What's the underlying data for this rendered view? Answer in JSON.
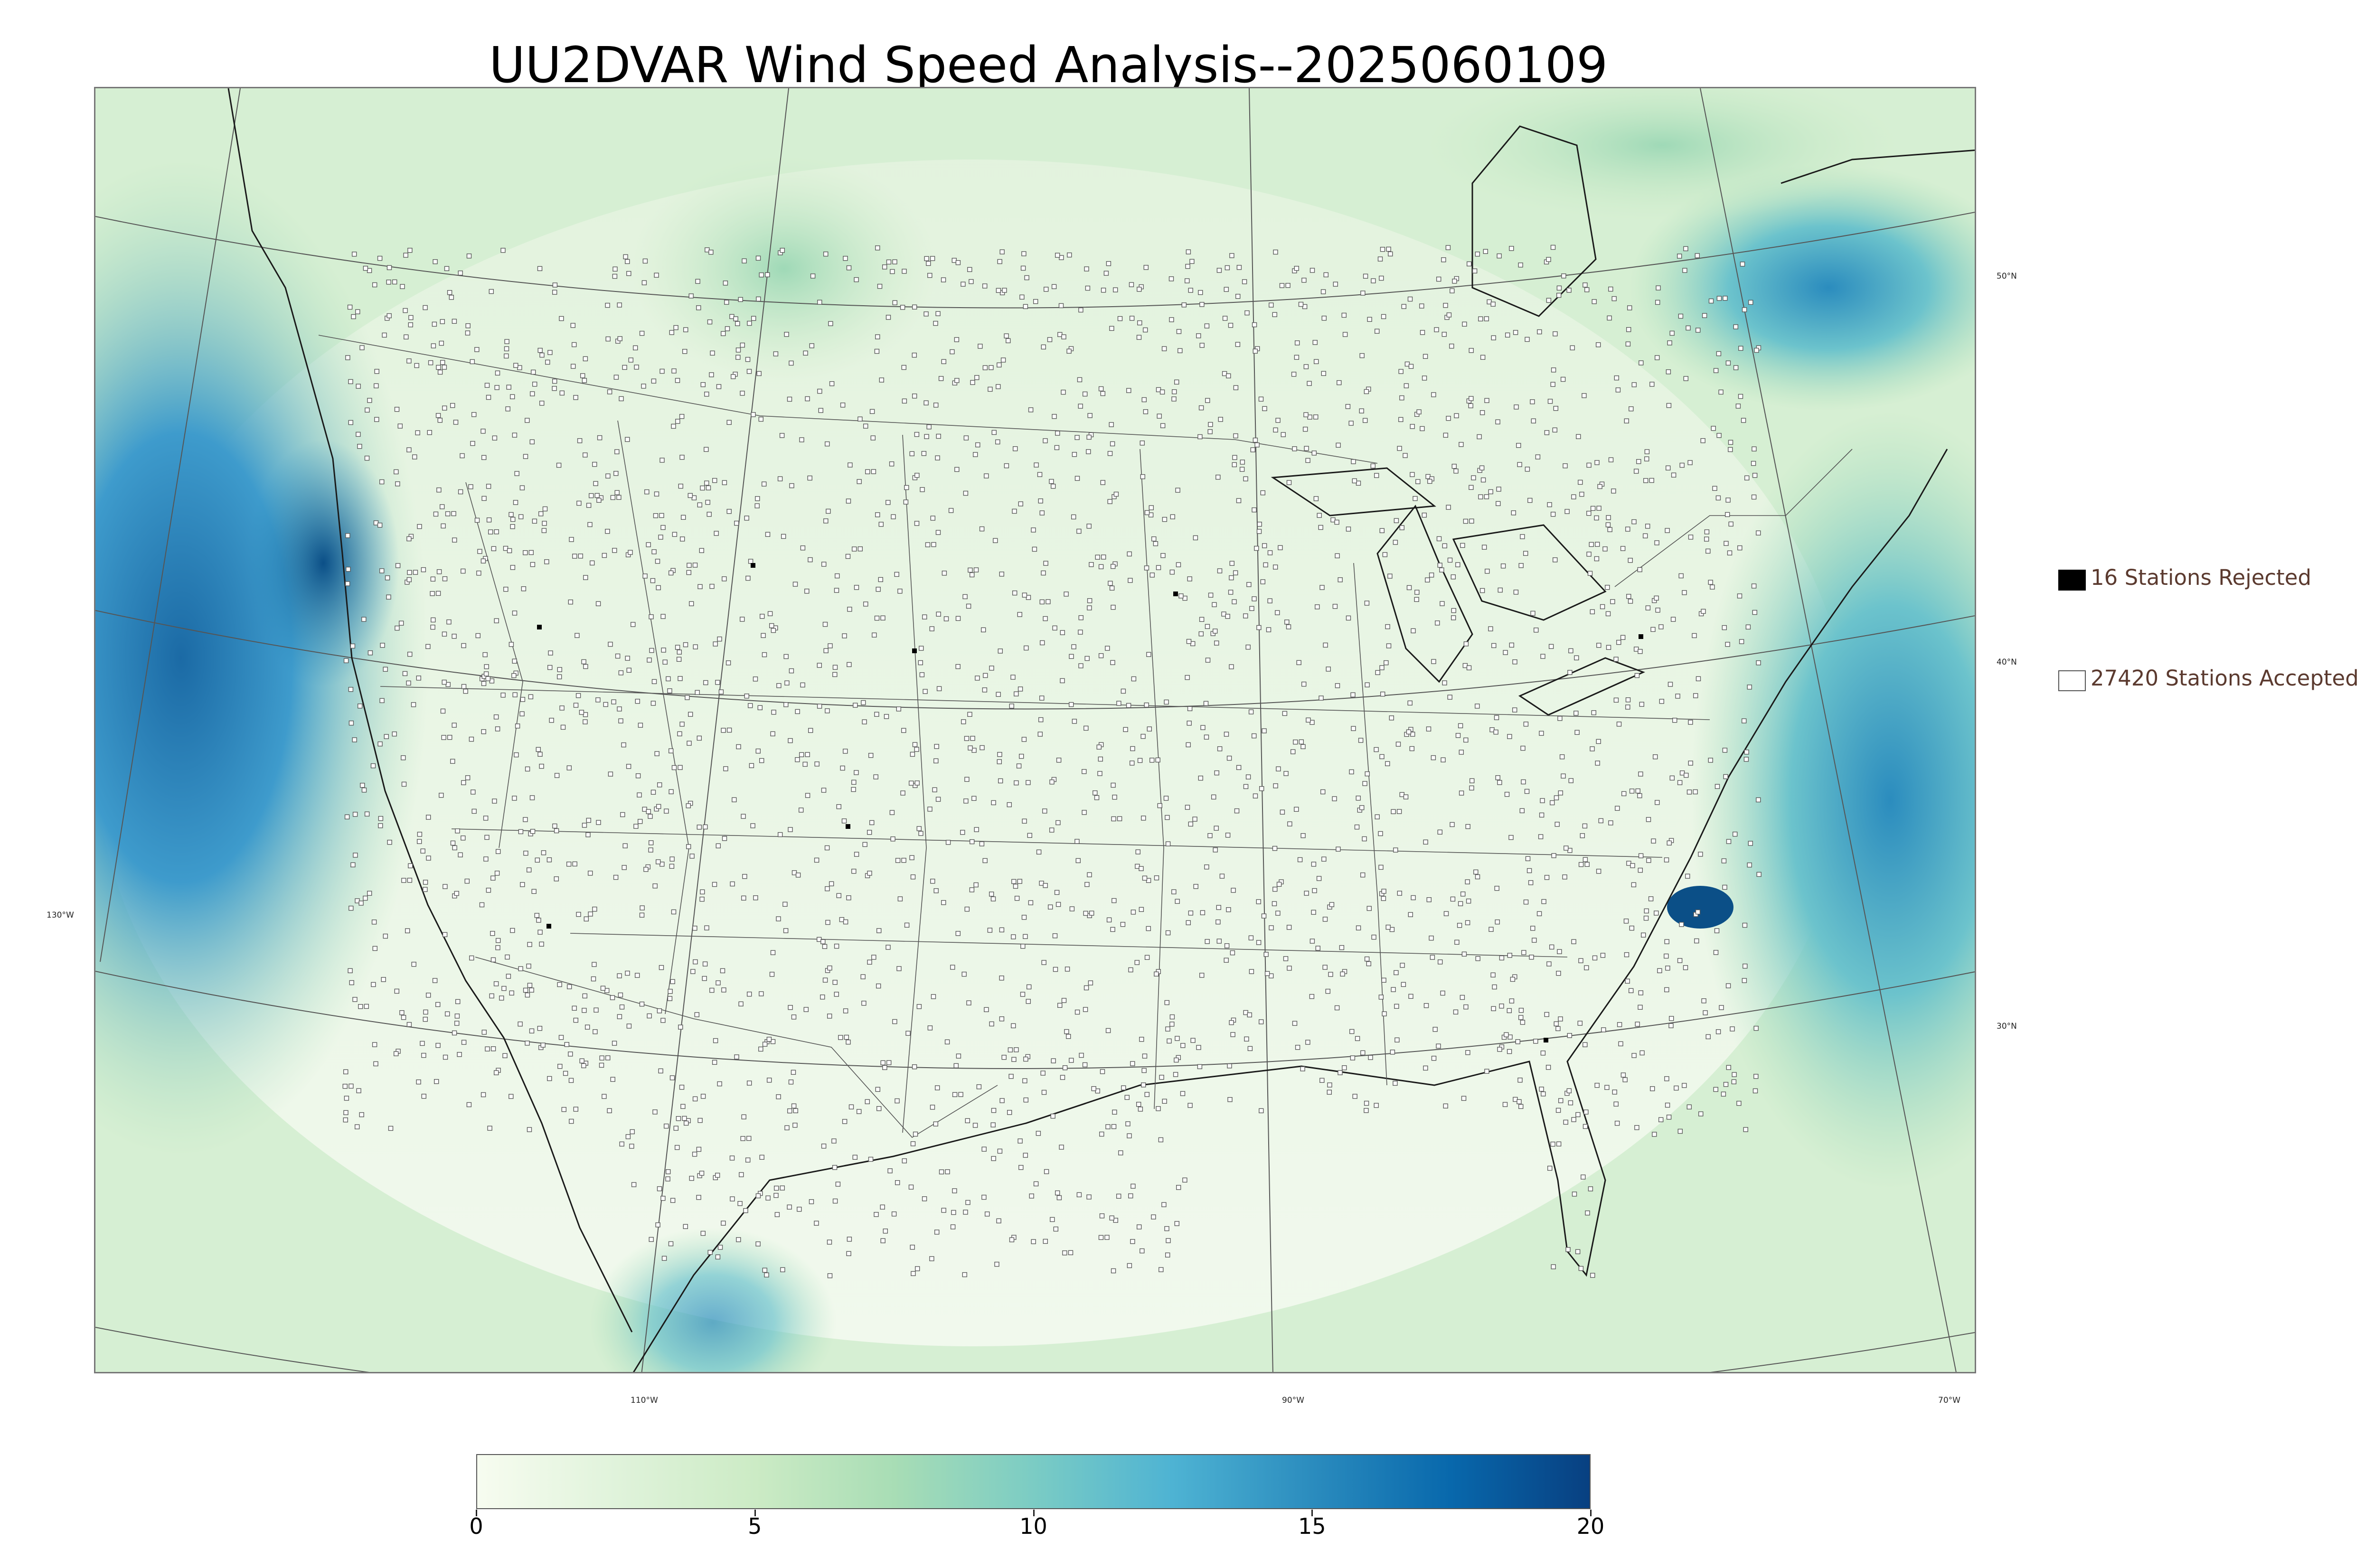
{
  "title": "UU2DVAR Wind Speed Analysis--2025060109",
  "map": {
    "longitude_labels": [
      "130°W",
      "110°W",
      "90°W",
      "70°W"
    ],
    "latitude_labels": [
      "50°N",
      "40°N",
      "30°N"
    ],
    "colors": {
      "land_base": "#f2f9ee",
      "ocean_strong": "#2f86c0",
      "coast_line": "#1a1a1a",
      "boundary_line": "#555555",
      "station_outline": "#5a5a5a"
    }
  },
  "legend": {
    "rejected": {
      "label": "16 Stations Rejected",
      "swatch_color": "#000000"
    },
    "accepted": {
      "label": "27420 Stations Accepted",
      "swatch_color": "#ffffff"
    }
  },
  "colorbar": {
    "min": 0,
    "max": 20,
    "tick_labels": [
      "0",
      "5",
      "10",
      "15",
      "20"
    ],
    "colormap": "GnBu",
    "color_stops": [
      "#f7fcf0",
      "#e0f3db",
      "#ccebc5",
      "#a8ddb5",
      "#7bccc4",
      "#4eb3d3",
      "#2b8cbe",
      "#0868ac",
      "#084081"
    ]
  }
}
